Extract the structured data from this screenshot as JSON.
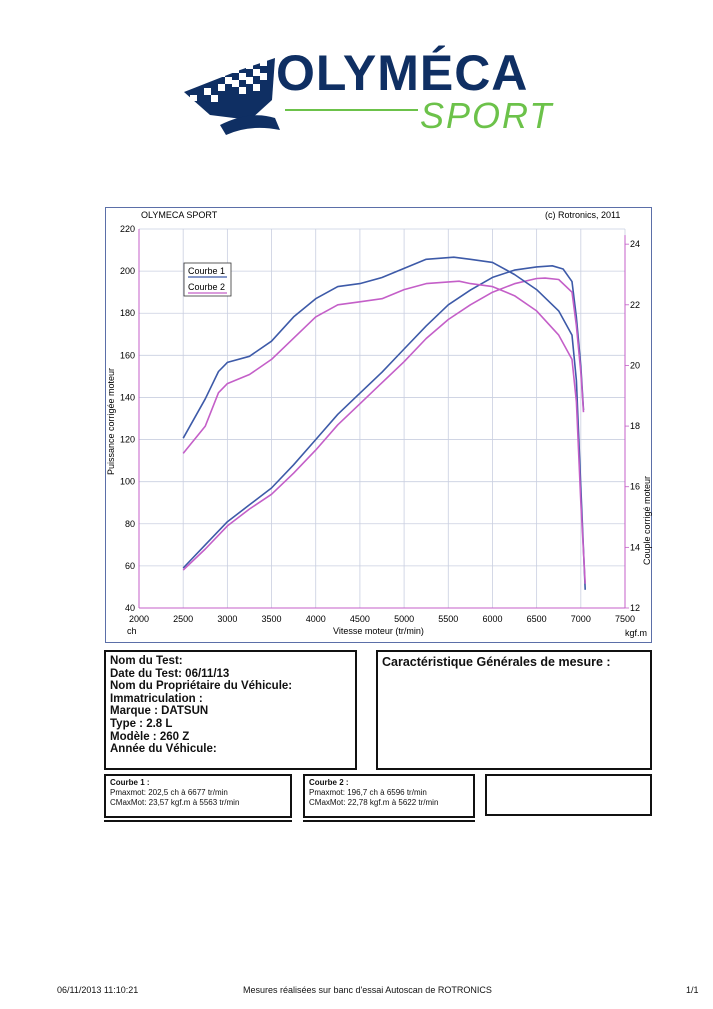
{
  "logo": {
    "brand": "OLYMÉCA",
    "sub": "SPORT"
  },
  "chart": {
    "header_left": "OLYMECA SPORT",
    "header_right": "(c) Rotronics, 2011",
    "xlabel": "Vitesse moteur (tr/min)",
    "ylabel_left": "Puissance corrigée moteur",
    "ylabel_right": "Couple corrigé moteur",
    "x_unit": "ch",
    "y2_unit": "kgf.m",
    "legend": [
      "Courbe 1",
      "Courbe 2"
    ],
    "colors": {
      "courbe1": "#3d5aa8",
      "courbe2": "#c45fc8",
      "grid": "#c9cfe0",
      "axis": "#c45fc8"
    }
  },
  "chart_data": {
    "type": "line",
    "title": "",
    "x_ticks": [
      2000,
      2500,
      3000,
      3500,
      4000,
      4500,
      5000,
      5500,
      6000,
      6500,
      7000,
      7500
    ],
    "y_ticks": [
      40,
      60,
      80,
      100,
      120,
      140,
      160,
      180,
      200,
      220
    ],
    "y2_ticks": [
      12,
      14,
      16,
      18,
      20,
      22,
      24
    ],
    "xlim": [
      2000,
      7500
    ],
    "ylim": [
      40,
      220
    ],
    "y2lim": [
      12,
      24.5
    ],
    "xlabel": "Vitesse moteur (tr/min)",
    "ylabel": "Puissance corrigée moteur",
    "y2label": "Couple corrigé moteur",
    "legend_position": "top-left",
    "grid": true,
    "series": [
      {
        "name": "Courbe 1",
        "axis": "left",
        "color": "#3d5aa8",
        "x": [
          2500,
          2750,
          3000,
          3250,
          3500,
          3750,
          4000,
          4250,
          4500,
          4750,
          5000,
          5250,
          5500,
          5750,
          6000,
          6250,
          6500,
          6677,
          6800,
          6900,
          6950,
          7000,
          7030
        ],
        "y": [
          59,
          70,
          81,
          89,
          97,
          108,
          120,
          132,
          142,
          152,
          163,
          174,
          184,
          191,
          197,
          200.5,
          202,
          202.5,
          201,
          195,
          178,
          155,
          134
        ]
      },
      {
        "name": "Courbe 2",
        "axis": "left",
        "color": "#c45fc8",
        "x": [
          2500,
          2750,
          3000,
          3250,
          3500,
          3750,
          4000,
          4250,
          4500,
          4750,
          5000,
          5250,
          5500,
          5750,
          6000,
          6250,
          6500,
          6596,
          6750,
          6900,
          6950,
          7000,
          7030
        ],
        "y": [
          58,
          68,
          79,
          87,
          94,
          104,
          115,
          127,
          137,
          147,
          157,
          168,
          177,
          184,
          190,
          194,
          196.5,
          196.7,
          196,
          190,
          174,
          152,
          133
        ]
      },
      {
        "name": "Courbe 1",
        "axis": "right",
        "color": "#3d5aa8",
        "x": [
          2500,
          2750,
          2900,
          3000,
          3250,
          3500,
          3750,
          4000,
          4250,
          4500,
          4750,
          5000,
          5250,
          5563,
          5750,
          6000,
          6250,
          6500,
          6750,
          6900,
          6950,
          7000,
          7050
        ],
        "y": [
          17.6,
          18.9,
          19.8,
          20.1,
          20.3,
          20.8,
          21.6,
          22.2,
          22.6,
          22.7,
          22.9,
          23.2,
          23.5,
          23.57,
          23.5,
          23.4,
          23.0,
          22.5,
          21.8,
          21.0,
          19.5,
          16.0,
          12.6
        ]
      },
      {
        "name": "Courbe 2",
        "axis": "right",
        "color": "#c45fc8",
        "x": [
          2500,
          2750,
          2900,
          3000,
          3250,
          3500,
          3750,
          4000,
          4250,
          4500,
          4750,
          5000,
          5250,
          5622,
          5750,
          6000,
          6250,
          6500,
          6750,
          6900,
          6950,
          7000,
          7050
        ],
        "y": [
          17.1,
          18.0,
          19.1,
          19.4,
          19.7,
          20.2,
          20.9,
          21.6,
          22.0,
          22.1,
          22.2,
          22.5,
          22.7,
          22.78,
          22.7,
          22.6,
          22.3,
          21.8,
          21.0,
          20.2,
          18.8,
          15.5,
          12.8
        ]
      }
    ]
  },
  "info": {
    "nom_test": "Nom du Test:",
    "date": "Date du Test: 06/11/13",
    "proprietaire": "Nom du Propriétaire du Véhicule:",
    "immat": "Immatriculation  :",
    "marque": "Marque  : DATSUN",
    "type": "Type  : 2.8 L",
    "modele": "Modèle  : 260 Z",
    "annee": "Année du Véhicule:"
  },
  "caracteristique_title": "Caractéristique Générales de mesure :",
  "courbe1_box": {
    "title": "Courbe 1 :",
    "pmax": "Pmaxmot: 202,5 ch à 6677 tr/min",
    "cmax": "CMaxMot: 23,57 kgf.m à 5563 tr/min"
  },
  "courbe2_box": {
    "title": "Courbe 2 :",
    "pmax": "Pmaxmot: 196,7 ch à 6596 tr/min",
    "cmax": "CMaxMot: 22,78 kgf.m à 5622 tr/min"
  },
  "footer": {
    "timestamp": "06/11/2013 11:10:21",
    "note": "Mesures réalisées sur banc d'essai Autoscan de ROTRONICS",
    "page": "1/1"
  }
}
